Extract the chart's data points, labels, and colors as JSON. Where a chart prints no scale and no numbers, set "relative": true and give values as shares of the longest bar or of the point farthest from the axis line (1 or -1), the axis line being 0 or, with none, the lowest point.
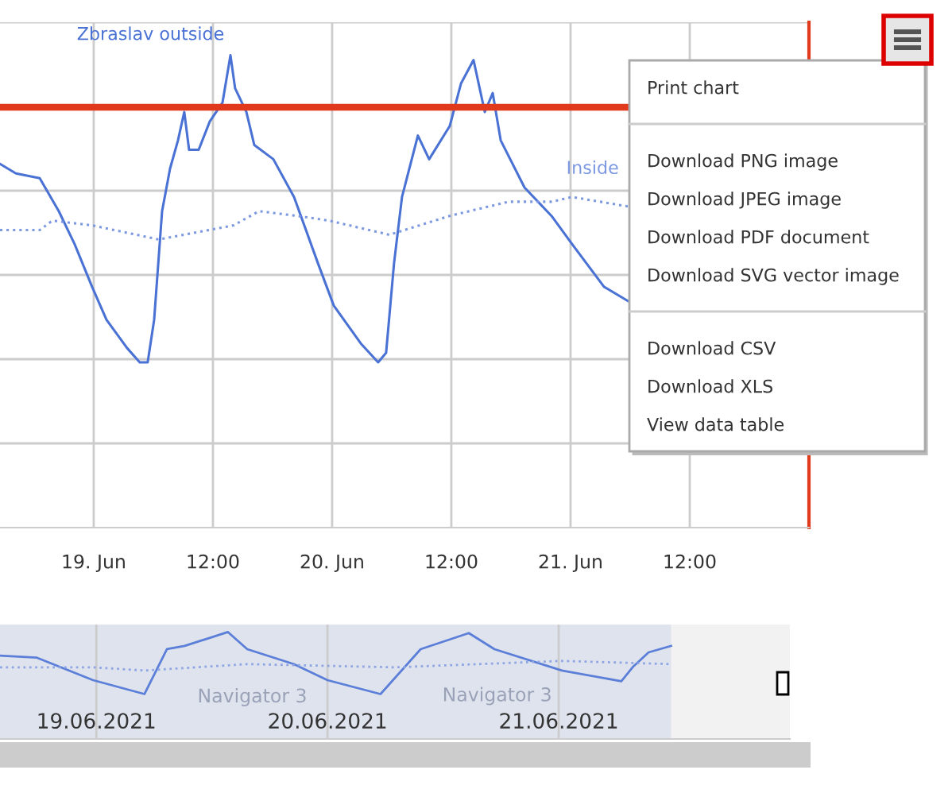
{
  "chart_data": [
    {
      "type": "line",
      "relative": true,
      "grid": true,
      "xlim": [
        "2021-06-18T14:34",
        "2021-06-22T00:00"
      ],
      "xticks": [
        {
          "value": "2021-06-19T00:00",
          "label": "19. Jun"
        },
        {
          "value": "2021-06-19T12:00",
          "label": "12:00"
        },
        {
          "value": "2021-06-20T00:00",
          "label": "20. Jun"
        },
        {
          "value": "2021-06-20T12:00",
          "label": "12:00"
        },
        {
          "value": "2021-06-21T00:00",
          "label": "21. Jun"
        },
        {
          "value": "2021-06-21T12:00",
          "label": "12:00"
        }
      ],
      "series": [
        {
          "name": "Zbraslav outside",
          "color": "#4a72d4",
          "line_style": "solid",
          "x": [
            "2021-06-18T14:34",
            "2021-06-18T16:10",
            "2021-06-18T18:34",
            "2021-06-18T20:29",
            "2021-06-18T22:05",
            "2021-06-18T23:50",
            "2021-06-19T01:17",
            "2021-06-19T03:22",
            "2021-06-19T04:38",
            "2021-06-19T05:26",
            "2021-06-19T06:05",
            "2021-06-19T06:53",
            "2021-06-19T07:41",
            "2021-06-19T08:29",
            "2021-06-19T09:07",
            "2021-06-19T09:36",
            "2021-06-19T10:34",
            "2021-06-19T11:41",
            "2021-06-19T12:58",
            "2021-06-19T13:46",
            "2021-06-19T14:14",
            "2021-06-19T15:22",
            "2021-06-19T16:10",
            "2021-06-19T18:05",
            "2021-06-19T20:10",
            "2021-06-19T22:34",
            "2021-06-20T00:10",
            "2021-06-20T02:53",
            "2021-06-20T04:38",
            "2021-06-20T05:26",
            "2021-06-20T06:14",
            "2021-06-20T07:02",
            "2021-06-20T08:38",
            "2021-06-20T09:46",
            "2021-06-20T11:50",
            "2021-06-20T12:58",
            "2021-06-20T14:14",
            "2021-06-20T15:22",
            "2021-06-20T16:10",
            "2021-06-20T16:58",
            "2021-06-20T19:22",
            "2021-06-20T22:05",
            "2021-06-21T00:10",
            "2021-06-21T03:22",
            "2021-06-21T05:46"
          ],
          "values": [
            0.77,
            0.75,
            0.74,
            0.67,
            0.6,
            0.51,
            0.44,
            0.38,
            0.35,
            0.35,
            0.44,
            0.67,
            0.76,
            0.82,
            0.88,
            0.8,
            0.8,
            0.86,
            0.9,
            1.0,
            0.93,
            0.88,
            0.81,
            0.78,
            0.7,
            0.56,
            0.47,
            0.39,
            0.35,
            0.37,
            0.56,
            0.7,
            0.83,
            0.78,
            0.85,
            0.94,
            0.99,
            0.88,
            0.92,
            0.82,
            0.72,
            0.66,
            0.6,
            0.51,
            0.48
          ]
        },
        {
          "name": "Inside",
          "color": "#7c98e0",
          "line_style": "dotted",
          "x": [
            "2021-06-18T14:34",
            "2021-06-18T18:34",
            "2021-06-18T19:50",
            "2021-06-18T23:50",
            "2021-06-19T06:34",
            "2021-06-19T14:05",
            "2021-06-19T16:38",
            "2021-06-19T20:29",
            "2021-06-19T23:41",
            "2021-06-20T05:46",
            "2021-06-20T11:50",
            "2021-06-20T17:46",
            "2021-06-20T22:05",
            "2021-06-21T00:10",
            "2021-06-21T05:46"
          ],
          "values": [
            0.63,
            0.63,
            0.65,
            0.64,
            0.61,
            0.64,
            0.67,
            0.66,
            0.65,
            0.62,
            0.66,
            0.69,
            0.69,
            0.7,
            0.68
          ]
        }
      ],
      "ref_lines": [
        {
          "axis": "y",
          "value": 0.89,
          "color": "#e0391b"
        }
      ],
      "annotations": [
        "Print chart",
        "Download PNG image",
        "Download JPEG image",
        "Download PDF document",
        "Download SVG vector image",
        "Download CSV",
        "Download XLS",
        "View data table"
      ]
    },
    {
      "type": "line",
      "relative": true,
      "grid": "x",
      "xlim": [
        "2021-06-18T14:00",
        "2021-06-22T00:00"
      ],
      "xticks": [
        {
          "value": "2021-06-19T00:00",
          "label": "19.06.2021"
        },
        {
          "value": "2021-06-20T00:00",
          "label": "20.06.2021"
        },
        {
          "value": "2021-06-21T00:00",
          "label": "21.06.2021"
        }
      ],
      "series": [
        {
          "color": "#5b7fd8",
          "line_style": "solid",
          "x": [
            "2021-06-18T14:00",
            "2021-06-18T17:50",
            "2021-06-18T23:40",
            "2021-06-19T05:00",
            "2021-06-19T07:20",
            "2021-06-19T09:10",
            "2021-06-19T13:40",
            "2021-06-19T15:40",
            "2021-06-19T20:30",
            "2021-06-20T00:00",
            "2021-06-20T05:30",
            "2021-06-20T09:40",
            "2021-06-20T14:40",
            "2021-06-20T17:20",
            "2021-06-21T00:20",
            "2021-06-21T06:30",
            "2021-06-21T07:40",
            "2021-06-21T09:20",
            "2021-06-21T11:40"
          ],
          "values": [
            0.78,
            0.76,
            0.55,
            0.42,
            0.84,
            0.87,
            1.0,
            0.84,
            0.7,
            0.55,
            0.42,
            0.84,
            0.99,
            0.84,
            0.64,
            0.54,
            0.67,
            0.81,
            0.87
          ]
        },
        {
          "color": "#8fa6e3",
          "line_style": "dotted",
          "x": [
            "2021-06-18T14:00",
            "2021-06-18T23:40",
            "2021-06-19T05:00",
            "2021-06-19T15:40",
            "2021-06-20T07:00",
            "2021-06-21T00:20",
            "2021-06-21T11:40"
          ],
          "values": [
            0.67,
            0.67,
            0.64,
            0.7,
            0.67,
            0.73,
            0.7
          ]
        }
      ],
      "bands": [
        {
          "axis": "x",
          "from": "2021-06-18T14:00",
          "to": "2021-06-21T11:40",
          "color": "#dfe3ee"
        }
      ],
      "annotations": [
        "Navigator 3",
        "Navigator 3"
      ]
    }
  ]
}
